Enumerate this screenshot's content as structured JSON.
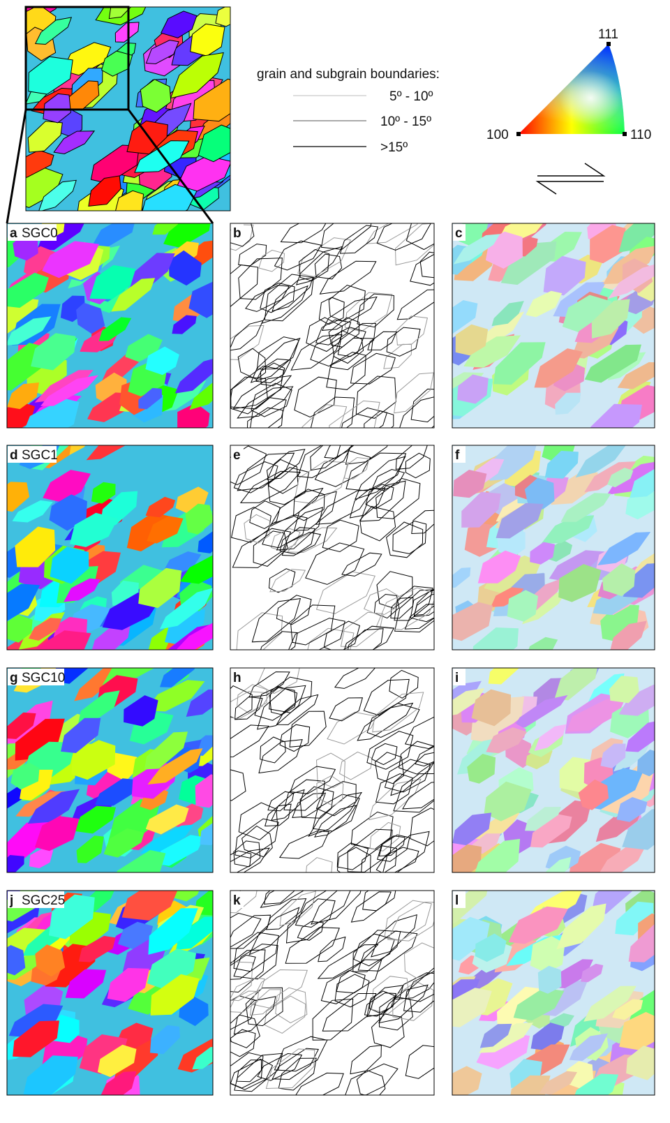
{
  "legend": {
    "title": "grain and subgrain boundaries:",
    "items": [
      "5º - 10º",
      "10º - 15º",
      ">15º"
    ]
  },
  "ipf": {
    "labels": [
      "111",
      "100",
      "110"
    ]
  },
  "panels": [
    {
      "letter": "a",
      "name": "SGC0"
    },
    {
      "letter": "b"
    },
    {
      "letter": "c"
    },
    {
      "letter": "d",
      "name": "SGC1"
    },
    {
      "letter": "e"
    },
    {
      "letter": "f"
    },
    {
      "letter": "g",
      "name": "SGC10"
    },
    {
      "letter": "h"
    },
    {
      "letter": "i"
    },
    {
      "letter": "j",
      "name": "SGC25"
    },
    {
      "letter": "k"
    },
    {
      "letter": "l"
    }
  ]
}
